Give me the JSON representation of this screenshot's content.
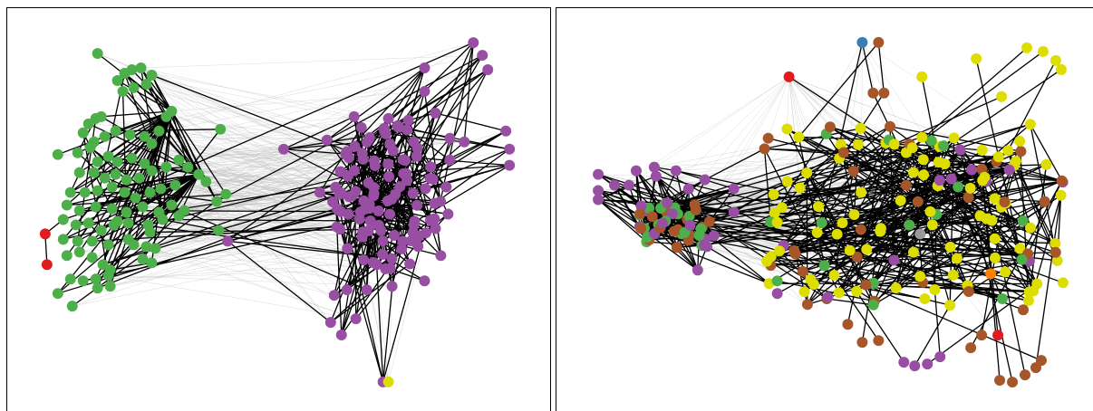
{
  "colors": {
    "green": "#4daf4a",
    "purple": "#984ea3",
    "red": "#e41a1c",
    "yellow": "#dddd00",
    "brown": "#a65628",
    "blue": "#377eb8",
    "gray": "#999999",
    "orange": "#ff7f00",
    "strong_edge": "#000000",
    "weak_edge": "#bbbbbb"
  },
  "panels": [
    {
      "id": "left",
      "description_key": "network-layout-communities"
    },
    {
      "id": "right",
      "description_key": "network-layout-attributes"
    }
  ]
}
